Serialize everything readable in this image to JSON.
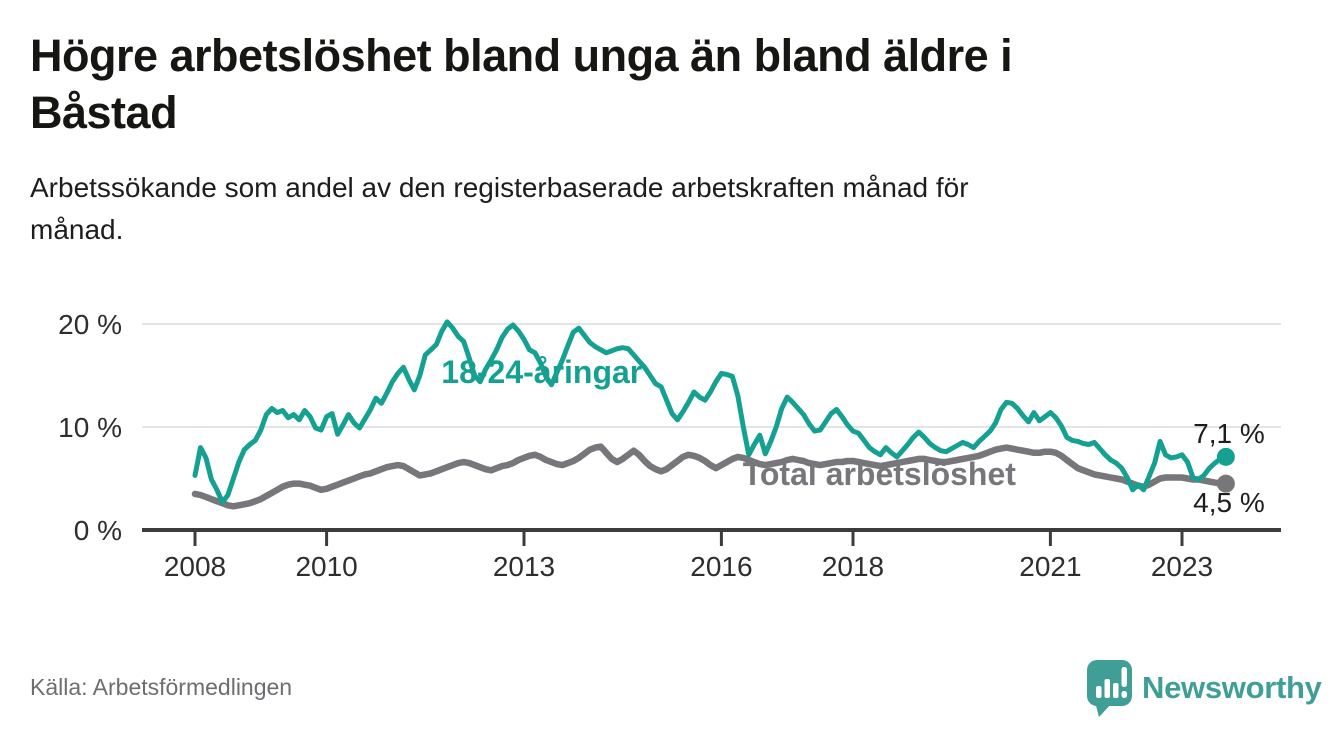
{
  "title": {
    "lines": [
      "Högre arbetslöshet bland unga än bland äldre i",
      "Båstad"
    ]
  },
  "subtitle": {
    "lines": [
      "Arbetssökande som andel av den registerbaserade arbetskraften månad för",
      "månad."
    ]
  },
  "source": "Källa: Arbetsförmedlingen",
  "logo": {
    "text": "Newsworthy",
    "icon": "bar-chart-speech-bubble-icon",
    "color": "#3f9e96"
  },
  "colors": {
    "young_series": "#14a192",
    "total_series": "#77767b",
    "axis": "#3c3c3c",
    "grid": "#dcdcdc",
    "tick_text": "#2e2e2e",
    "value_text": "#1d1d1b"
  },
  "chart_data": {
    "type": "line",
    "title": "Högre arbetslöshet bland unga än bland äldre i Båstad",
    "subtitle": "Arbetssökande som andel av den registerbaserade arbetskraften månad för månad.",
    "x_unit": "decimal_year_monthly",
    "x_start": 2008.0,
    "x_end": 2023.667,
    "months_per_step": 1,
    "xlim": [
      2007.2,
      2024.5
    ],
    "ylim": [
      0,
      21
    ],
    "grid": "horizontal",
    "xticks": [
      2008,
      2010,
      2013,
      2016,
      2018,
      2021,
      2023
    ],
    "yticks": [
      {
        "value": 0,
        "label": "0 %"
      },
      {
        "value": 10,
        "label": "10 %"
      },
      {
        "value": 20,
        "label": "20 %"
      }
    ],
    "series": [
      {
        "name": "Total arbetslöshet",
        "color": "#77767b",
        "stroke_width": 6.5,
        "end_label": "4,5 %",
        "end_value": 4.5,
        "values": [
          3.5,
          3.4,
          3.2,
          3.0,
          2.8,
          2.6,
          2.4,
          2.3,
          2.4,
          2.5,
          2.6,
          2.8,
          3.0,
          3.3,
          3.6,
          3.9,
          4.2,
          4.4,
          4.5,
          4.5,
          4.4,
          4.3,
          4.1,
          3.9,
          4.0,
          4.2,
          4.4,
          4.6,
          4.8,
          5.0,
          5.2,
          5.4,
          5.5,
          5.7,
          5.9,
          6.1,
          6.2,
          6.3,
          6.2,
          5.9,
          5.6,
          5.3,
          5.4,
          5.5,
          5.7,
          5.9,
          6.1,
          6.3,
          6.5,
          6.6,
          6.5,
          6.3,
          6.1,
          5.9,
          5.8,
          6.0,
          6.2,
          6.3,
          6.5,
          6.8,
          7.0,
          7.2,
          7.3,
          7.1,
          6.8,
          6.6,
          6.4,
          6.3,
          6.5,
          6.7,
          7.0,
          7.4,
          7.8,
          8.0,
          8.1,
          7.5,
          6.9,
          6.6,
          6.9,
          7.3,
          7.7,
          7.3,
          6.7,
          6.2,
          5.9,
          5.7,
          5.9,
          6.3,
          6.7,
          7.1,
          7.3,
          7.2,
          7.0,
          6.7,
          6.3,
          6.0,
          6.3,
          6.6,
          6.9,
          7.1,
          7.0,
          6.8,
          6.6,
          6.4,
          6.3,
          6.4,
          6.5,
          6.6,
          6.8,
          6.9,
          6.8,
          6.7,
          6.5,
          6.4,
          6.3,
          6.4,
          6.5,
          6.6,
          6.6,
          6.7,
          6.7,
          6.6,
          6.5,
          6.4,
          6.3,
          6.2,
          6.3,
          6.4,
          6.5,
          6.6,
          6.7,
          6.8,
          6.9,
          6.9,
          6.8,
          6.7,
          6.6,
          6.6,
          6.7,
          6.8,
          6.9,
          7.0,
          7.1,
          7.2,
          7.4,
          7.6,
          7.8,
          7.9,
          8.0,
          7.9,
          7.8,
          7.7,
          7.6,
          7.5,
          7.5,
          7.6,
          7.6,
          7.5,
          7.2,
          6.8,
          6.4,
          6.0,
          5.8,
          5.6,
          5.4,
          5.3,
          5.2,
          5.1,
          5.0,
          4.9,
          4.7,
          4.5,
          4.3,
          4.2,
          4.4,
          4.7,
          5.0,
          5.1,
          5.1,
          5.1,
          5.1,
          5.0,
          4.9,
          4.9,
          4.8,
          4.7,
          4.6,
          4.5,
          4.5
        ]
      },
      {
        "name": "18-24-åringar",
        "color": "#14a192",
        "stroke_width": 5,
        "end_label": "7,1 %",
        "end_value": 7.1,
        "values": [
          5.3,
          8.0,
          7.0,
          4.9,
          3.9,
          2.7,
          3.4,
          5.0,
          6.6,
          7.8,
          8.3,
          8.7,
          9.7,
          11.2,
          11.8,
          11.4,
          11.6,
          10.9,
          11.2,
          10.7,
          11.6,
          11.0,
          9.9,
          9.7,
          11.0,
          11.3,
          9.3,
          10.2,
          11.2,
          10.4,
          9.9,
          10.8,
          11.7,
          12.8,
          12.3,
          13.3,
          14.4,
          15.2,
          15.8,
          14.6,
          13.6,
          15.0,
          17.0,
          17.5,
          18.0,
          19.3,
          20.2,
          19.6,
          18.8,
          18.3,
          16.7,
          15.0,
          14.4,
          15.6,
          16.5,
          17.5,
          18.7,
          19.5,
          19.9,
          19.3,
          18.5,
          17.5,
          17.2,
          16.2,
          14.9,
          14.1,
          15.3,
          16.5,
          17.9,
          19.2,
          19.6,
          18.9,
          18.2,
          17.8,
          17.5,
          17.2,
          17.4,
          17.6,
          17.7,
          17.6,
          17.0,
          16.4,
          15.8,
          15.0,
          14.2,
          13.9,
          12.6,
          11.3,
          10.7,
          11.5,
          12.4,
          13.4,
          12.9,
          12.6,
          13.4,
          14.4,
          15.2,
          15.1,
          14.9,
          13.0,
          10.0,
          7.3,
          8.3,
          9.2,
          7.4,
          8.6,
          10.0,
          11.8,
          12.9,
          12.4,
          11.8,
          11.2,
          10.3,
          9.6,
          9.7,
          10.5,
          11.3,
          11.7,
          11.0,
          10.2,
          9.6,
          9.4,
          8.7,
          8.0,
          7.6,
          7.3,
          8.0,
          7.5,
          7.1,
          7.7,
          8.3,
          9.0,
          9.5,
          9.0,
          8.4,
          8.0,
          7.7,
          7.6,
          7.9,
          8.2,
          8.5,
          8.3,
          8.0,
          8.6,
          9.1,
          9.6,
          10.4,
          11.7,
          12.4,
          12.3,
          11.8,
          11.1,
          10.5,
          11.4,
          10.6,
          11.0,
          11.4,
          10.9,
          10.1,
          9.0,
          8.7,
          8.6,
          8.4,
          8.3,
          8.5,
          7.9,
          7.3,
          6.8,
          6.5,
          6.0,
          5.1,
          3.9,
          4.4,
          3.9,
          5.2,
          6.5,
          8.6,
          7.3,
          7.0,
          7.1,
          7.3,
          6.6,
          5.1,
          4.9,
          5.3,
          6.0,
          6.5,
          6.9,
          7.1
        ]
      }
    ],
    "annotations": [
      {
        "text": "18-24-åringar",
        "x": 2013.27,
        "y": 14.27,
        "anchor": "middle",
        "font_size": 32,
        "bold": true,
        "color": "#14a192"
      },
      {
        "text": "Total arbetslöshet",
        "x": 2018.4,
        "y": 4.37,
        "anchor": "middle",
        "font_size": 32,
        "bold": true,
        "color": "#77767b"
      },
      {
        "text": "7,1 %",
        "x": 2023.17,
        "y": 8.45,
        "anchor": "start",
        "font_size": 28,
        "bold": false,
        "color": "#1d1d1b"
      },
      {
        "text": "4,5 %",
        "x": 2023.17,
        "y": 1.75,
        "anchor": "start",
        "font_size": 28,
        "bold": false,
        "color": "#1d1d1b"
      }
    ],
    "legend_position": "inline-labels"
  }
}
